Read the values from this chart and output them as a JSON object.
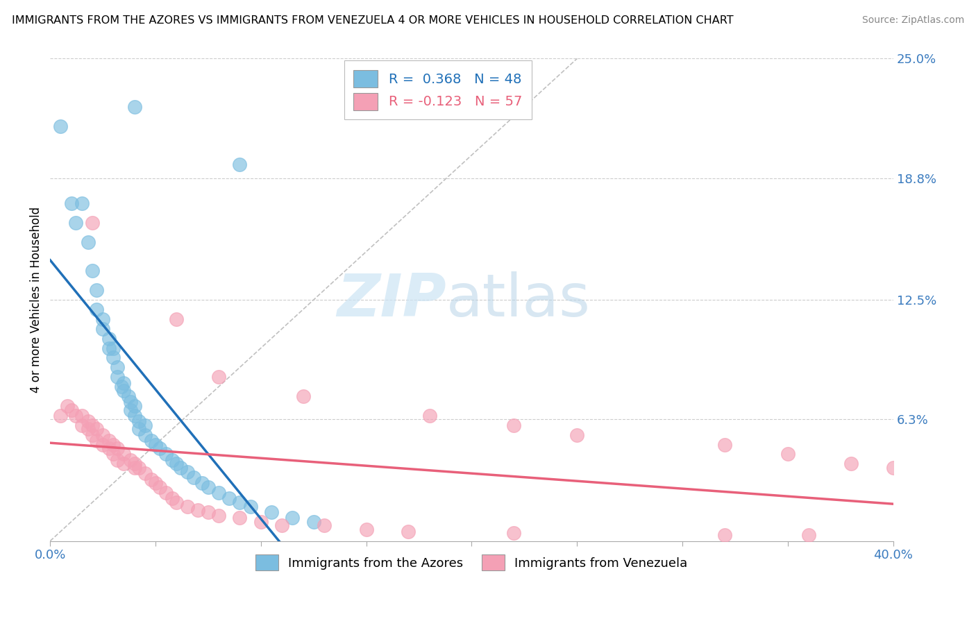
{
  "title": "IMMIGRANTS FROM THE AZORES VS IMMIGRANTS FROM VENEZUELA 4 OR MORE VEHICLES IN HOUSEHOLD CORRELATION CHART",
  "source": "Source: ZipAtlas.com",
  "ylabel": "4 or more Vehicles in Household",
  "xlim": [
    0.0,
    0.4
  ],
  "ylim": [
    0.0,
    0.25
  ],
  "xtick_vals": [
    0.0,
    0.05,
    0.1,
    0.15,
    0.2,
    0.25,
    0.3,
    0.35,
    0.4
  ],
  "xticklabels": [
    "0.0%",
    "",
    "",
    "",
    "",
    "",
    "",
    "",
    "40.0%"
  ],
  "ytick_right_labels": [
    "25.0%",
    "18.8%",
    "12.5%",
    "6.3%"
  ],
  "ytick_right_values": [
    0.25,
    0.188,
    0.125,
    0.063
  ],
  "blue_R": 0.368,
  "blue_N": 48,
  "pink_R": -0.123,
  "pink_N": 57,
  "legend_label_blue": "Immigrants from the Azores",
  "legend_label_pink": "Immigrants from Venezuela",
  "blue_color": "#7bbde0",
  "pink_color": "#f4a0b5",
  "blue_line_color": "#2070b8",
  "pink_line_color": "#e8607a",
  "diagonal_line_color": "#c0c0c0",
  "watermark_zip": "ZIP",
  "watermark_atlas": "atlas",
  "blue_x": [
    0.005,
    0.01,
    0.012,
    0.015,
    0.018,
    0.02,
    0.022,
    0.022,
    0.025,
    0.025,
    0.028,
    0.028,
    0.03,
    0.03,
    0.032,
    0.032,
    0.034,
    0.035,
    0.035,
    0.037,
    0.038,
    0.038,
    0.04,
    0.04,
    0.042,
    0.042,
    0.045,
    0.045,
    0.048,
    0.05,
    0.052,
    0.055,
    0.058,
    0.06,
    0.062,
    0.065,
    0.068,
    0.072,
    0.075,
    0.08,
    0.085,
    0.09,
    0.095,
    0.105,
    0.115,
    0.125,
    0.04,
    0.09
  ],
  "blue_y": [
    0.215,
    0.175,
    0.165,
    0.175,
    0.155,
    0.14,
    0.13,
    0.12,
    0.115,
    0.11,
    0.105,
    0.1,
    0.1,
    0.095,
    0.09,
    0.085,
    0.08,
    0.082,
    0.078,
    0.075,
    0.072,
    0.068,
    0.07,
    0.065,
    0.062,
    0.058,
    0.06,
    0.055,
    0.052,
    0.05,
    0.048,
    0.045,
    0.042,
    0.04,
    0.038,
    0.036,
    0.033,
    0.03,
    0.028,
    0.025,
    0.022,
    0.02,
    0.018,
    0.015,
    0.012,
    0.01,
    0.225,
    0.195
  ],
  "pink_x": [
    0.005,
    0.008,
    0.01,
    0.012,
    0.015,
    0.015,
    0.018,
    0.018,
    0.02,
    0.02,
    0.022,
    0.022,
    0.025,
    0.025,
    0.028,
    0.028,
    0.03,
    0.03,
    0.032,
    0.032,
    0.035,
    0.035,
    0.038,
    0.04,
    0.04,
    0.042,
    0.045,
    0.048,
    0.05,
    0.052,
    0.055,
    0.058,
    0.06,
    0.065,
    0.07,
    0.075,
    0.08,
    0.09,
    0.1,
    0.11,
    0.13,
    0.15,
    0.17,
    0.22,
    0.32,
    0.36,
    0.06,
    0.08,
    0.12,
    0.18,
    0.22,
    0.25,
    0.32,
    0.35,
    0.38,
    0.4,
    0.02
  ],
  "pink_y": [
    0.065,
    0.07,
    0.068,
    0.065,
    0.065,
    0.06,
    0.062,
    0.058,
    0.06,
    0.055,
    0.058,
    0.052,
    0.055,
    0.05,
    0.052,
    0.048,
    0.05,
    0.045,
    0.048,
    0.042,
    0.045,
    0.04,
    0.042,
    0.04,
    0.038,
    0.038,
    0.035,
    0.032,
    0.03,
    0.028,
    0.025,
    0.022,
    0.02,
    0.018,
    0.016,
    0.015,
    0.013,
    0.012,
    0.01,
    0.008,
    0.008,
    0.006,
    0.005,
    0.004,
    0.003,
    0.003,
    0.115,
    0.085,
    0.075,
    0.065,
    0.06,
    0.055,
    0.05,
    0.045,
    0.04,
    0.038,
    0.165
  ]
}
